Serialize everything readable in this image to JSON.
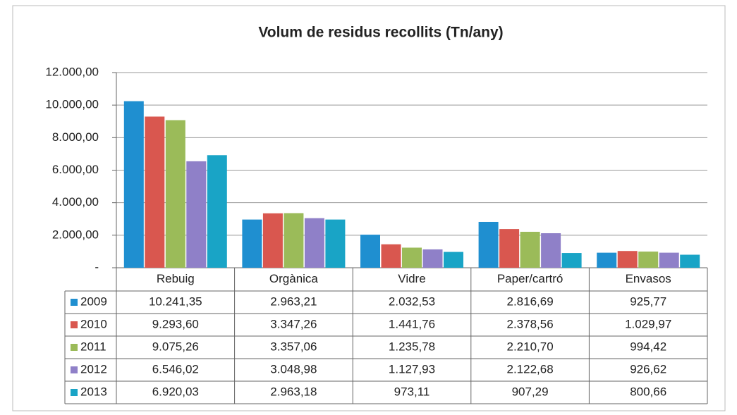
{
  "chart_data": {
    "type": "bar",
    "title": "Volum de residus recollits (Tn/any)",
    "categories": [
      "Rebuig",
      "Orgànica",
      "Vidre",
      "Paper/cartró",
      "Envasos"
    ],
    "series": [
      {
        "name": "2009",
        "color": "#1f8fd0",
        "values": [
          10241.35,
          2963.21,
          2032.53,
          2816.69,
          925.77
        ],
        "value_labels": [
          "10.241,35",
          "2.963,21",
          "2.032,53",
          "2.816,69",
          "925,77"
        ]
      },
      {
        "name": "2010",
        "color": "#d9574f",
        "values": [
          9293.6,
          3347.26,
          1441.76,
          2378.56,
          1029.97
        ],
        "value_labels": [
          "9.293,60",
          "3.347,26",
          "1.441,76",
          "2.378,56",
          "1.029,97"
        ]
      },
      {
        "name": "2011",
        "color": "#9bbb59",
        "values": [
          9075.26,
          3357.06,
          1235.78,
          2210.7,
          994.42
        ],
        "value_labels": [
          "9.075,26",
          "3.357,06",
          "1.235,78",
          "2.210,70",
          "994,42"
        ]
      },
      {
        "name": "2012",
        "color": "#8f80c8",
        "values": [
          6546.02,
          3048.98,
          1127.93,
          2122.68,
          926.62
        ],
        "value_labels": [
          "6.546,02",
          "3.048,98",
          "1.127,93",
          "2.122,68",
          "926,62"
        ]
      },
      {
        "name": "2013",
        "color": "#19a4c6",
        "values": [
          6920.03,
          2963.18,
          973.11,
          907.29,
          800.66
        ],
        "value_labels": [
          "6.920,03",
          "2.963,18",
          "973,11",
          "907,29",
          "800,66"
        ]
      }
    ],
    "ylim": [
      0,
      12000
    ],
    "yticks": [
      {
        "value": 0,
        "label": "-"
      },
      {
        "value": 2000,
        "label": "2.000,00"
      },
      {
        "value": 4000,
        "label": "4.000,00"
      },
      {
        "value": 6000,
        "label": "6.000,00"
      },
      {
        "value": 8000,
        "label": "8.000,00"
      },
      {
        "value": 10000,
        "label": "10.000,00"
      },
      {
        "value": 12000,
        "label": "12.000,00"
      }
    ],
    "grid": true
  }
}
